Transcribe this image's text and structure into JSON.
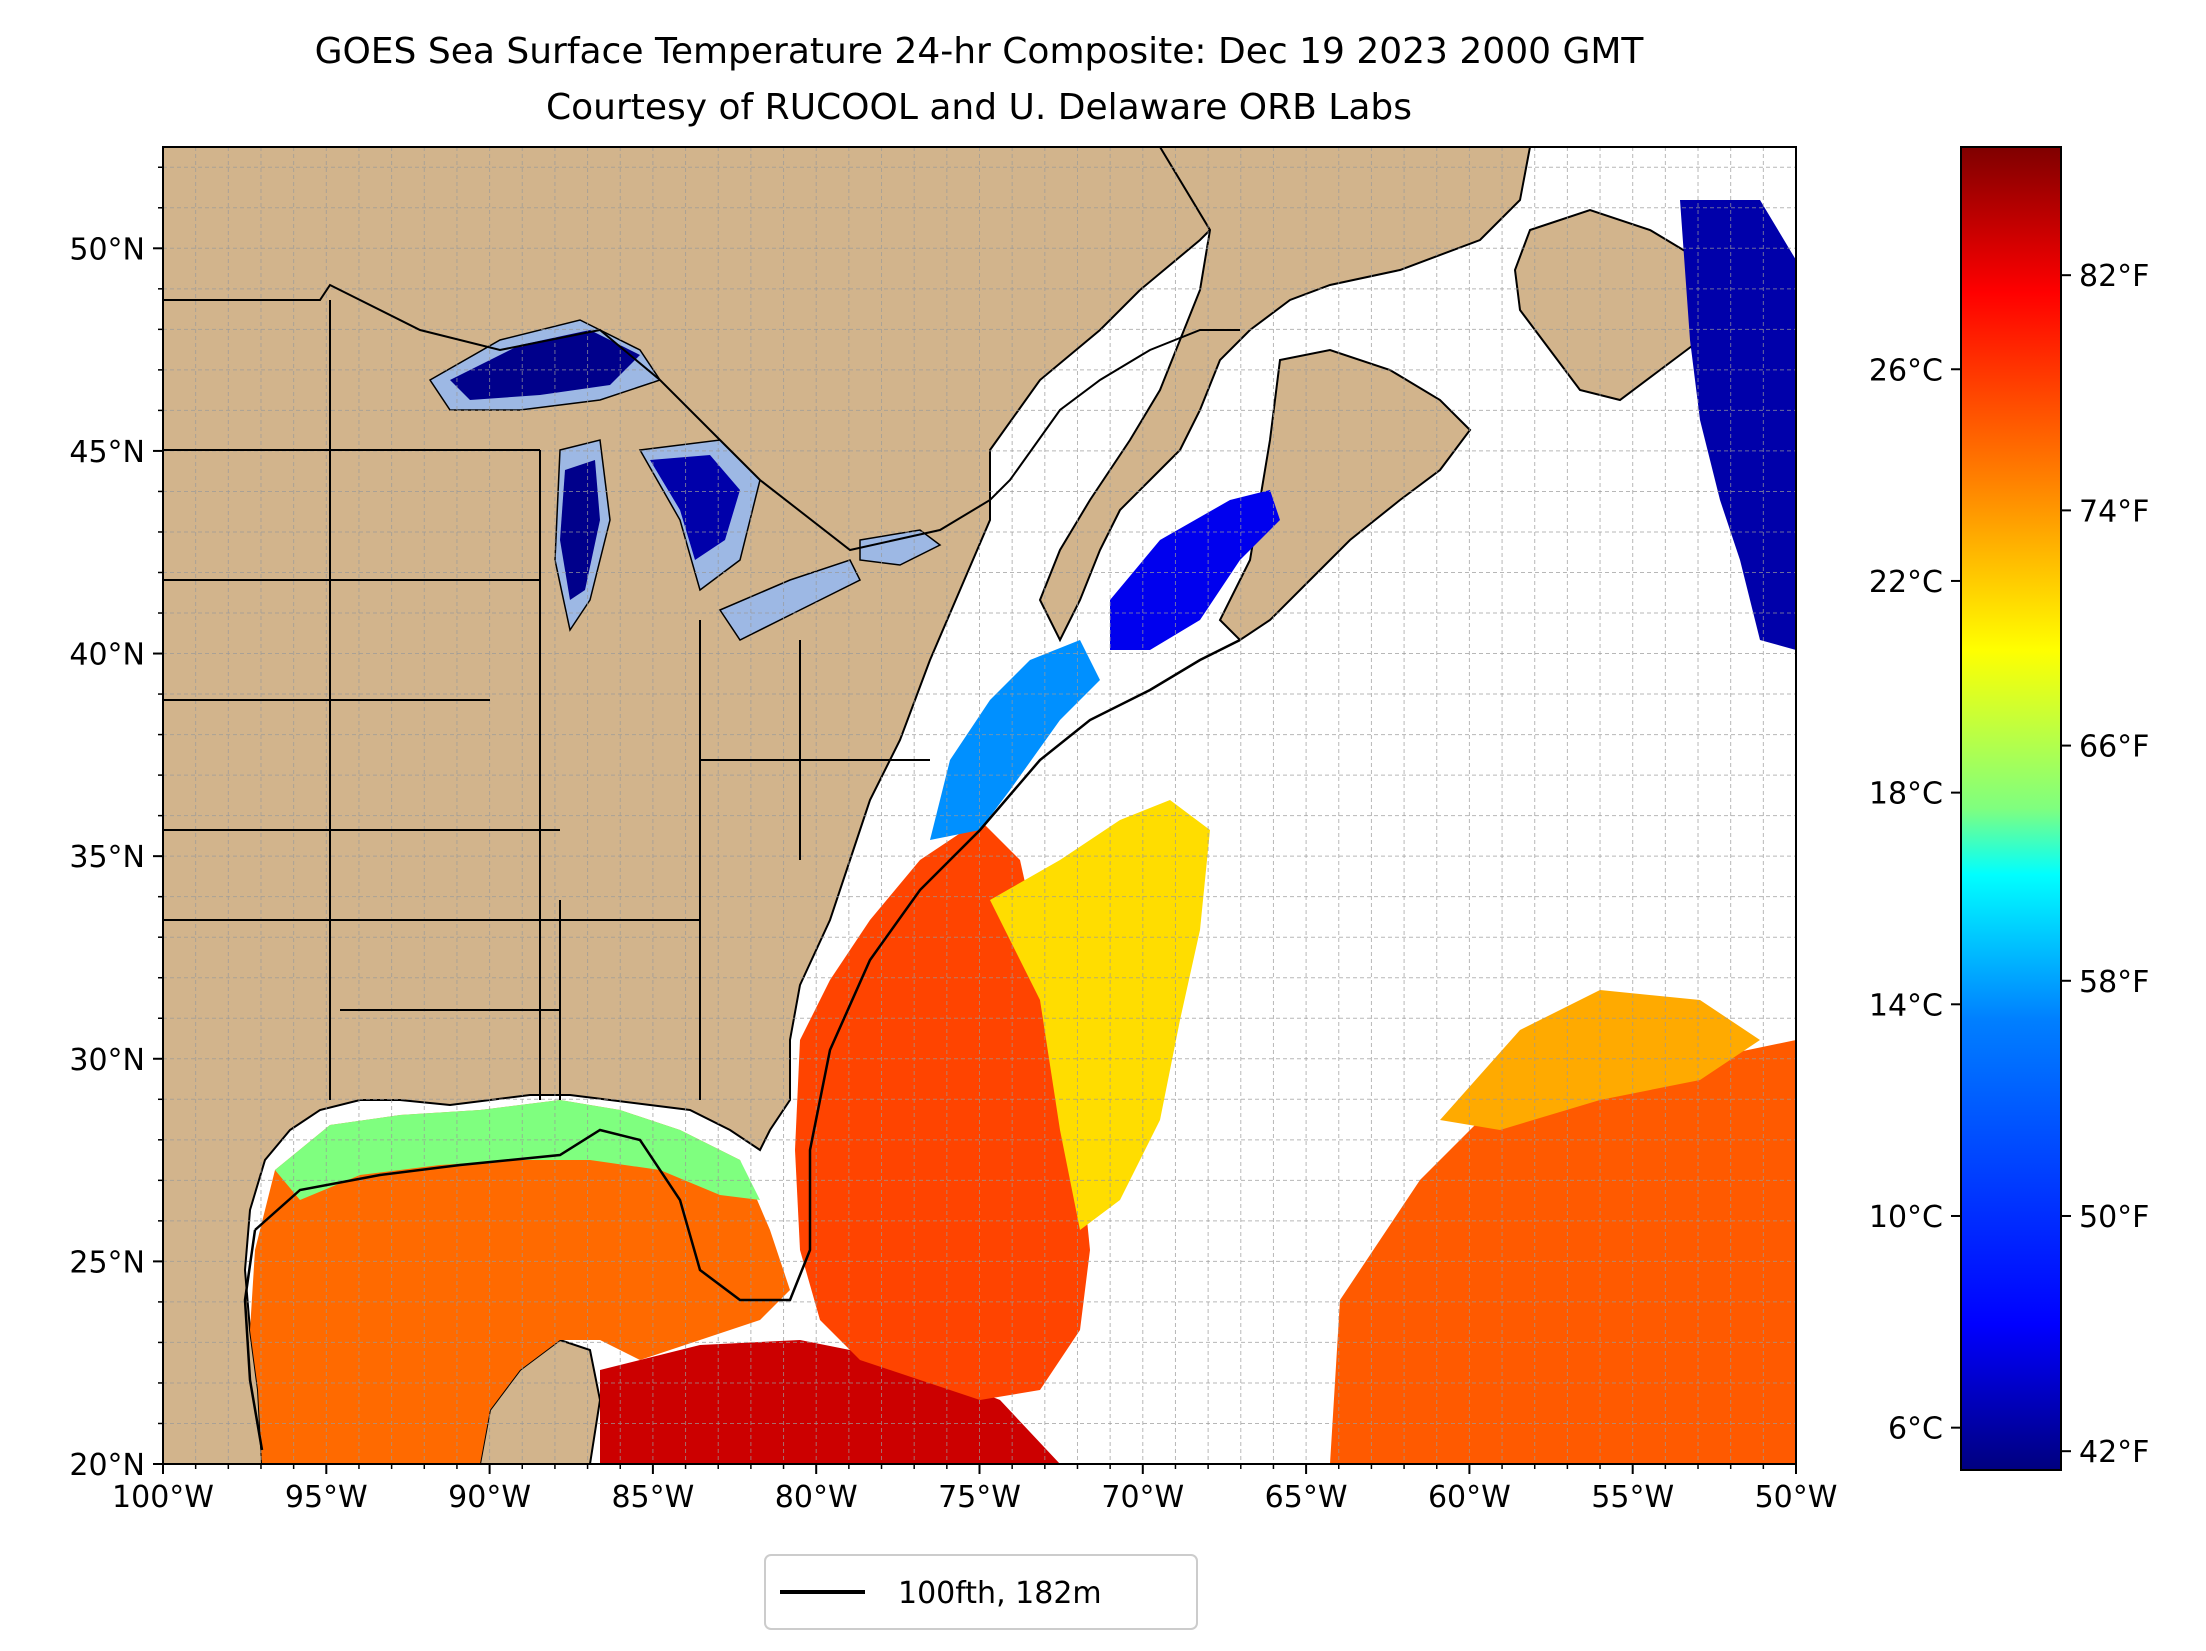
{
  "title": {
    "line1": "GOES Sea Surface Temperature 24-hr Composite: Dec 19 2023 2000 GMT",
    "line2": "Courtesy of RUCOOL and U. Delaware ORB Labs"
  },
  "map": {
    "lon_range": [
      -100,
      -50
    ],
    "lat_range": [
      20,
      52.5
    ],
    "grid": true,
    "land_color": "#d2b48c",
    "lake_color": "#9db8e4",
    "ocean_missing_color": "#ffffff",
    "lon_ticks": [
      {
        "value": -100,
        "label": "100°W"
      },
      {
        "value": -95,
        "label": "95°W"
      },
      {
        "value": -90,
        "label": "90°W"
      },
      {
        "value": -85,
        "label": "85°W"
      },
      {
        "value": -80,
        "label": "80°W"
      },
      {
        "value": -75,
        "label": "75°W"
      },
      {
        "value": -70,
        "label": "70°W"
      },
      {
        "value": -65,
        "label": "65°W"
      },
      {
        "value": -60,
        "label": "60°W"
      },
      {
        "value": -55,
        "label": "55°W"
      },
      {
        "value": -50,
        "label": "50°W"
      }
    ],
    "lat_ticks": [
      {
        "value": 20,
        "label": "20°N"
      },
      {
        "value": 25,
        "label": "25°N"
      },
      {
        "value": 30,
        "label": "30°N"
      },
      {
        "value": 35,
        "label": "35°N"
      },
      {
        "value": 40,
        "label": "40°N"
      },
      {
        "value": 45,
        "label": "45°N"
      },
      {
        "value": 50,
        "label": "50°N"
      }
    ]
  },
  "colorbar": {
    "range_c": [
      5.2,
      30.2
    ],
    "celsius_ticks": [
      {
        "value": 6,
        "label": "6°C"
      },
      {
        "value": 10,
        "label": "10°C"
      },
      {
        "value": 14,
        "label": "14°C"
      },
      {
        "value": 18,
        "label": "18°C"
      },
      {
        "value": 22,
        "label": "22°C"
      },
      {
        "value": 26,
        "label": "26°C"
      }
    ],
    "fahrenheit_ticks": [
      {
        "value": 42,
        "label": "42°F"
      },
      {
        "value": 50,
        "label": "50°F"
      },
      {
        "value": 58,
        "label": "58°F"
      },
      {
        "value": 66,
        "label": "66°F"
      },
      {
        "value": 74,
        "label": "74°F"
      },
      {
        "value": 82,
        "label": "82°F"
      }
    ],
    "colormap": [
      "#00007f",
      "#0000ff",
      "#007fff",
      "#00ffff",
      "#7fff7f",
      "#ffff00",
      "#ff7f00",
      "#ff0000",
      "#7f0000"
    ]
  },
  "legend": {
    "label": "100fth, 182m",
    "line_color": "#000000"
  }
}
